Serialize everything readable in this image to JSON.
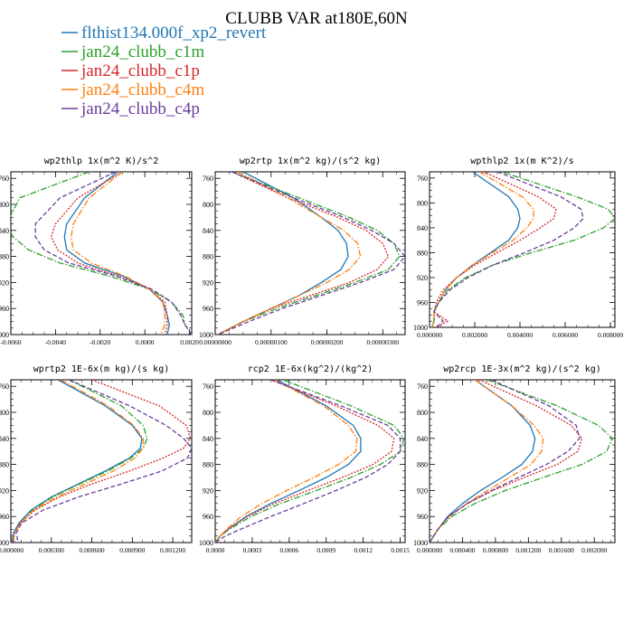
{
  "figure": {
    "title": "CLUBB VAR at180E,60N"
  },
  "legend": {
    "items": [
      {
        "label": "flthist134.000f_xp2_revert",
        "color": "#1f77b4",
        "dash": "solid"
      },
      {
        "label": "jan24_clubb_c1m",
        "color": "#2ca02c",
        "dash": "dashdot"
      },
      {
        "label": "jan24_clubb_c1p",
        "color": "#d62728",
        "dash": "dotted"
      },
      {
        "label": "jan24_clubb_c4m",
        "color": "#ff7f0e",
        "dash": "dashdot"
      },
      {
        "label": "jan24_clubb_c4p",
        "color": "#6a3d9a",
        "dash": "dashed"
      }
    ]
  },
  "chart_data": [
    {
      "type": "line",
      "title": "wp2thlp  1x(m^2 K)/s^2",
      "xlim": [
        -0.006,
        0.0021
      ],
      "ylim": [
        1000,
        750
      ],
      "xticks": [
        "-0.0060",
        "-0.0040",
        "-0.0020",
        "0.0000",
        "0.0020"
      ],
      "xtick_values": [
        -0.006,
        -0.004,
        -0.002,
        0.0,
        0.002
      ],
      "yticks": [
        "760",
        "800",
        "840",
        "880",
        "920",
        "960",
        "1000"
      ],
      "ytick_values": [
        760,
        800,
        840,
        880,
        920,
        960,
        1000
      ],
      "y": [
        750,
        790,
        830,
        850,
        870,
        890,
        910,
        930,
        950,
        970,
        985,
        1000
      ],
      "series": [
        {
          "x": [
            -0.0012,
            -0.0027,
            -0.0035,
            -0.0036,
            -0.0035,
            -0.0027,
            -0.001,
            0.0002,
            0.0008,
            0.001,
            0.0011,
            0.001
          ]
        },
        {
          "x": [
            -0.0025,
            -0.0056,
            -0.0062,
            -0.0059,
            -0.0052,
            -0.0038,
            -0.0016,
            0.0002,
            0.0012,
            0.0017,
            0.0018,
            0.0021
          ]
        },
        {
          "x": [
            -0.001,
            -0.003,
            -0.004,
            -0.0042,
            -0.0039,
            -0.003,
            -0.0012,
            0.0002,
            0.0009,
            0.001,
            0.001,
            0.0009
          ]
        },
        {
          "x": [
            -0.001,
            -0.0025,
            -0.0032,
            -0.0033,
            -0.0032,
            -0.0024,
            -0.0009,
            0.0002,
            0.0008,
            0.0009,
            0.0009,
            0.0007
          ]
        },
        {
          "x": [
            -0.0013,
            -0.0038,
            -0.0049,
            -0.0049,
            -0.0045,
            -0.0034,
            -0.0013,
            0.0003,
            0.0012,
            0.0016,
            0.0018,
            0.0021
          ]
        }
      ]
    },
    {
      "type": "line",
      "title": "wp2rtp  1x(m^2 kg)/(s^2 kg)",
      "xlim": [
        0,
        3.4e-06
      ],
      "ylim": [
        1000,
        750
      ],
      "xticks": [
        "0.00000000",
        "0.00000100",
        "0.00000200",
        "0.00000300"
      ],
      "xtick_values": [
        0,
        1e-06,
        2e-06,
        3e-06
      ],
      "yticks": [
        "760",
        "800",
        "840",
        "880",
        "920",
        "960",
        "1000"
      ],
      "ytick_values": [
        760,
        800,
        840,
        880,
        920,
        960,
        1000
      ],
      "y": [
        750,
        790,
        820,
        840,
        860,
        880,
        900,
        920,
        940,
        960,
        980,
        1000
      ],
      "series": [
        {
          "x": [
            5e-07,
            1.4e-06,
            1.9e-06,
            2.2e-06,
            2.35e-06,
            2.38e-06,
            2.25e-06,
            1.9e-06,
            1.5e-06,
            1e-06,
            5e-07,
            5e-08
          ]
        },
        {
          "x": [
            3e-07,
            1.5e-06,
            2.4e-06,
            2.9e-06,
            3.2e-06,
            3.3e-06,
            3.1e-06,
            2.5e-06,
            1.8e-06,
            1.1e-06,
            5e-07,
            5e-08
          ]
        },
        {
          "x": [
            3e-07,
            1.3e-06,
            2.2e-06,
            2.7e-06,
            3e-06,
            3.1e-06,
            2.9e-06,
            2.4e-06,
            1.7e-06,
            1e-06,
            5e-07,
            5e-08
          ]
        },
        {
          "x": [
            4e-07,
            1.3e-06,
            1.9e-06,
            2.3e-06,
            2.55e-06,
            2.6e-06,
            2.4e-06,
            2e-06,
            1.5e-06,
            1e-06,
            5e-07,
            5e-08
          ]
        },
        {
          "x": [
            3e-07,
            1.4e-06,
            2.3e-06,
            2.8e-06,
            3.2e-06,
            3.4e-06,
            3.2e-06,
            2.6e-06,
            1.9e-06,
            1.2e-06,
            6e-07,
            5e-08
          ]
        }
      ]
    },
    {
      "type": "line",
      "title": "wpthlp2  1x(m K^2)/s",
      "xlim": [
        0,
        0.0082
      ],
      "ylim": [
        1000,
        750
      ],
      "xticks": [
        "0.000000",
        "0.002000",
        "0.004000",
        "0.006000",
        "0.008000"
      ],
      "xtick_values": [
        0,
        0.002,
        0.004,
        0.006,
        0.008
      ],
      "yticks": [
        "760",
        "800",
        "840",
        "880",
        "920",
        "960",
        "1000"
      ],
      "ytick_values": [
        760,
        800,
        840,
        880,
        920,
        960,
        1000
      ],
      "y": [
        750,
        790,
        810,
        825,
        840,
        860,
        880,
        900,
        920,
        940,
        960,
        975,
        990,
        1000
      ],
      "series": [
        {
          "x": [
            0.0019,
            0.0035,
            0.0039,
            0.004,
            0.0039,
            0.0035,
            0.0027,
            0.0019,
            0.0012,
            0.0007,
            0.0004,
            0.0002,
            0.0002,
            0.0001
          ]
        },
        {
          "x": [
            0.0032,
            0.0065,
            0.0079,
            0.0082,
            0.0077,
            0.0064,
            0.0045,
            0.0028,
            0.0016,
            0.0008,
            0.0004,
            0.0002,
            0.0002,
            0.0001
          ]
        },
        {
          "x": [
            0.0024,
            0.0048,
            0.0056,
            0.0055,
            0.0049,
            0.004,
            0.003,
            0.002,
            0.0012,
            0.0006,
            0.0003,
            0.0002,
            0.0008,
            0.0003
          ]
        },
        {
          "x": [
            0.0022,
            0.0041,
            0.0046,
            0.0046,
            0.0043,
            0.0037,
            0.0028,
            0.0019,
            0.0012,
            0.0007,
            0.0004,
            0.0002,
            0.0002,
            0.0001
          ]
        },
        {
          "x": [
            0.003,
            0.0058,
            0.0067,
            0.0068,
            0.0064,
            0.0055,
            0.0042,
            0.0028,
            0.0017,
            0.0009,
            0.0004,
            0.0002,
            0.0006,
            0.0003
          ]
        }
      ]
    },
    {
      "type": "line",
      "title": "wprtp2  1E-6x(m kg)/(s kg)",
      "xlim": [
        0,
        0.00134
      ],
      "ylim": [
        1000,
        750
      ],
      "xticks": [
        "0.000000",
        "0.000300",
        "0.000600",
        "0.000900",
        "0.001200"
      ],
      "xtick_values": [
        0,
        0.0003,
        0.0006,
        0.0009,
        0.0012
      ],
      "yticks": [
        "760",
        "800",
        "840",
        "880",
        "920",
        "960",
        "1000"
      ],
      "ytick_values": [
        760,
        800,
        840,
        880,
        920,
        960,
        1000
      ],
      "y": [
        750,
        790,
        820,
        840,
        855,
        870,
        890,
        910,
        930,
        950,
        970,
        985,
        995,
        1000
      ],
      "series": [
        {
          "x": [
            0.00035,
            0.0007,
            0.0009,
            0.00097,
            0.00096,
            0.00088,
            0.0007,
            0.0005,
            0.0003,
            0.00015,
            6e-05,
            2e-05,
            1e-05,
            0.0
          ]
        },
        {
          "x": [
            0.00043,
            0.00082,
            0.00098,
            0.00101,
            0.00098,
            0.00089,
            0.00072,
            0.00051,
            0.00031,
            0.00016,
            7e-05,
            3e-05,
            2e-05,
            0.0
          ]
        },
        {
          "x": [
            0.0006,
            0.0011,
            0.0013,
            0.00133,
            0.00128,
            0.00113,
            0.00088,
            0.0006,
            0.00036,
            0.00018,
            7e-05,
            3e-05,
            2e-05,
            0.0
          ]
        },
        {
          "x": [
            0.00037,
            0.00072,
            0.00091,
            0.00098,
            0.00098,
            0.00092,
            0.00076,
            0.00055,
            0.00034,
            0.00017,
            7e-05,
            3e-05,
            2e-05,
            0.0
          ]
        },
        {
          "x": [
            0.00043,
            0.00088,
            0.00115,
            0.00128,
            0.00134,
            0.00131,
            0.00112,
            0.00082,
            0.0005,
            0.00024,
            8e-05,
            4e-05,
            5e-05,
            0.0
          ]
        }
      ]
    },
    {
      "type": "line",
      "title": "rcp2  1E-6x(kg^2)/(kg^2)",
      "xlim": [
        0,
        0.00154
      ],
      "ylim": [
        1000,
        750
      ],
      "xticks": [
        "0.0000",
        "0.0003",
        "0.0006",
        "0.0009",
        "0.0012",
        "0.0015"
      ],
      "xtick_values": [
        0,
        0.0003,
        0.0006,
        0.0009,
        0.0012,
        0.0015
      ],
      "yticks": [
        "760",
        "800",
        "840",
        "880",
        "920",
        "960",
        "1000"
      ],
      "ytick_values": [
        760,
        800,
        840,
        880,
        920,
        960,
        1000
      ],
      "y": [
        750,
        790,
        820,
        840,
        860,
        880,
        900,
        920,
        940,
        960,
        980,
        990,
        1000
      ],
      "series": [
        {
          "x": [
            0.0005,
            0.0009,
            0.00112,
            0.00118,
            0.00118,
            0.00108,
            0.0009,
            0.00068,
            0.00045,
            0.00025,
            0.0001,
            4e-05,
            0.0
          ]
        },
        {
          "x": [
            0.00055,
            0.0011,
            0.00145,
            0.00153,
            0.0015,
            0.00134,
            0.0011,
            0.00082,
            0.00053,
            0.00029,
            0.00011,
            4e-05,
            0.0
          ]
        },
        {
          "x": [
            0.00045,
            0.00098,
            0.00132,
            0.00145,
            0.00143,
            0.00128,
            0.00103,
            0.00075,
            0.00048,
            0.00026,
            0.0001,
            4e-05,
            0.0
          ]
        },
        {
          "x": [
            0.00048,
            0.00088,
            0.00108,
            0.00115,
            0.00114,
            0.001,
            0.0008,
            0.00058,
            0.00038,
            0.00021,
            9e-05,
            4e-05,
            0.0
          ]
        },
        {
          "x": [
            0.00045,
            0.00102,
            0.0014,
            0.0015,
            0.0015,
            0.0014,
            0.00122,
            0.00098,
            0.00072,
            0.00045,
            0.0002,
            8e-05,
            0.0
          ]
        }
      ]
    },
    {
      "type": "line",
      "title": "wp2rcp  1E-3x(m^2 kg)/(s^2 kg)",
      "xlim": [
        0,
        0.00225
      ],
      "ylim": [
        1000,
        750
      ],
      "xticks": [
        "0.000000",
        "0.000400",
        "0.000800",
        "0.001200",
        "0.001600",
        "0.002000"
      ],
      "xtick_values": [
        0,
        0.0004,
        0.0008,
        0.0012,
        0.0016,
        0.002
      ],
      "yticks": [
        "760",
        "800",
        "840",
        "880",
        "920",
        "960",
        "1000"
      ],
      "ytick_values": [
        760,
        800,
        840,
        880,
        920,
        960,
        1000
      ],
      "y": [
        750,
        790,
        820,
        840,
        860,
        880,
        900,
        920,
        940,
        960,
        980,
        1000
      ],
      "series": [
        {
          "x": [
            0.00055,
            0.001,
            0.00122,
            0.00128,
            0.00125,
            0.00112,
            0.00088,
            0.00062,
            0.0004,
            0.00022,
            0.0001,
            0.0
          ]
        },
        {
          "x": [
            0.0007,
            0.00155,
            0.00205,
            0.00222,
            0.00215,
            0.00185,
            0.00138,
            0.00092,
            0.00055,
            0.00027,
            0.0001,
            0.0
          ]
        },
        {
          "x": [
            0.0006,
            0.0013,
            0.00172,
            0.00185,
            0.0018,
            0.00155,
            0.00115,
            0.00077,
            0.00046,
            0.00023,
            0.0001,
            0.0
          ]
        },
        {
          "x": [
            0.00055,
            0.001,
            0.00127,
            0.00138,
            0.00136,
            0.00123,
            0.00097,
            0.0007,
            0.00045,
            0.00024,
            0.0001,
            0.0
          ]
        },
        {
          "x": [
            0.00075,
            0.00145,
            0.00178,
            0.00182,
            0.00168,
            0.00142,
            0.00108,
            0.00075,
            0.00046,
            0.00023,
            0.0001,
            0.0
          ]
        }
      ]
    }
  ]
}
